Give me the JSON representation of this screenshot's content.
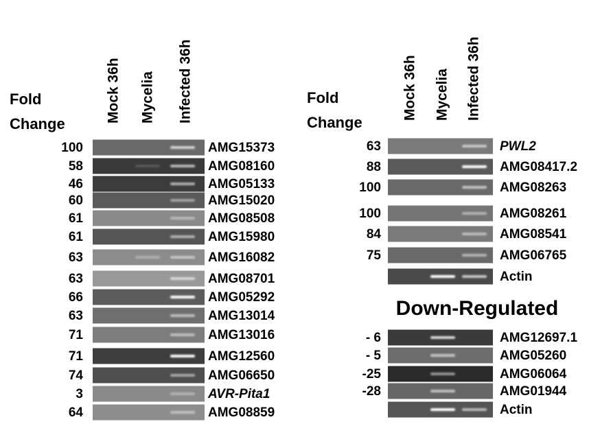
{
  "left_panel": {
    "columns": [
      "Mock 36h",
      "Mycelia",
      "Infected 36h"
    ],
    "fold_label": "Fold",
    "change_label": "Change",
    "rows": [
      {
        "fold": "100",
        "gene": "AMG15373"
      },
      {
        "fold": "58",
        "gene": "AMG08160"
      },
      {
        "fold": "46",
        "gene": "AMG05133"
      },
      {
        "fold": "60",
        "gene": "AMG15020"
      },
      {
        "fold": "61",
        "gene": "AMG08508"
      },
      {
        "fold": "61",
        "gene": "AMG15980"
      },
      {
        "fold": "63",
        "gene": "AMG16082"
      },
      {
        "fold": "63",
        "gene": "AMG08701"
      },
      {
        "fold": "66",
        "gene": "AMG05292"
      },
      {
        "fold": "63",
        "gene": "AMG13014"
      },
      {
        "fold": "71",
        "gene": "AMG13016"
      },
      {
        "fold": "71",
        "gene": "AMG12560"
      },
      {
        "fold": "74",
        "gene": "AMG06650"
      },
      {
        "fold": "3",
        "gene": "AVR-Pita1"
      },
      {
        "fold": "64",
        "gene": "AMG08859"
      }
    ]
  },
  "right_panel": {
    "columns": [
      "Mock 36h",
      "Mycelia",
      "Infected 36h"
    ],
    "fold_label": "Fold",
    "change_label": "Change",
    "rows": [
      {
        "fold": "63",
        "gene": "PWL2"
      },
      {
        "fold": "88",
        "gene": "AMG08417.2"
      },
      {
        "fold": "100",
        "gene": "AMG08263"
      },
      {
        "fold": "100",
        "gene": "AMG08261"
      },
      {
        "fold": "84",
        "gene": "AMG08541"
      },
      {
        "fold": "75",
        "gene": "AMG06765"
      },
      {
        "gene": "Actin"
      }
    ]
  },
  "down_regulated": {
    "title": "Down-Regulated",
    "rows": [
      {
        "fold": "- 6",
        "gene": "AMG12697.1"
      },
      {
        "fold": "- 5",
        "gene": "AMG05260"
      },
      {
        "fold": "-25",
        "gene": "AMG06064"
      },
      {
        "fold": "-28",
        "gene": "AMG01944"
      },
      {
        "gene": "Actin"
      }
    ]
  }
}
